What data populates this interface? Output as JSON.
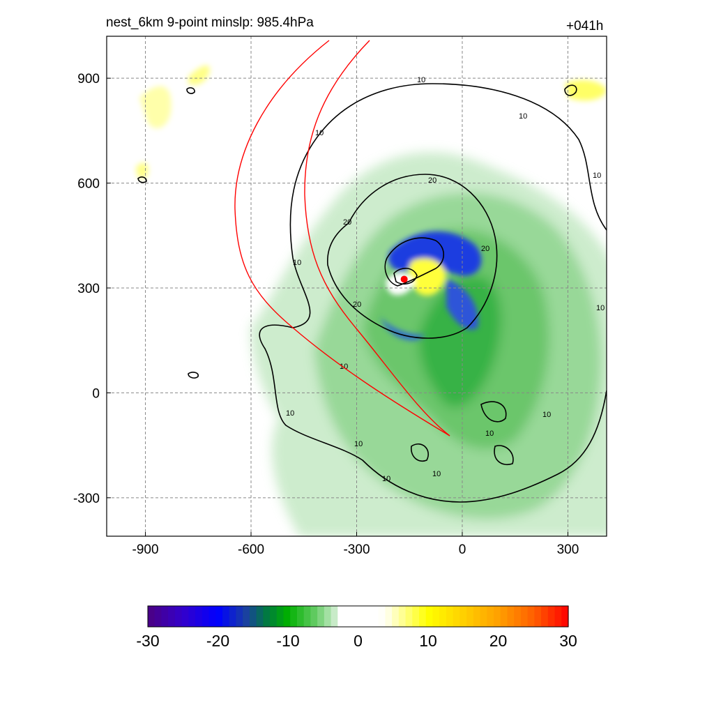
{
  "header": {
    "left_title": "nest_6km  9-point minslp: 985.4hPa",
    "right_title": "+041h"
  },
  "chart_data": {
    "type": "heatmap",
    "title": "nest_6km  9-point minslp: 985.4hPa",
    "time_label": "+041h",
    "xlabel": "",
    "ylabel": "",
    "xlim": [
      -1010,
      410
    ],
    "ylim": [
      -410,
      1020
    ],
    "xticks": [
      -900,
      -600,
      -300,
      0,
      300
    ],
    "yticks": [
      -300,
      0,
      300,
      600,
      900
    ],
    "grid": true,
    "colorbar": {
      "min": -30,
      "max": 30,
      "ticks": [
        -30,
        -20,
        -10,
        0,
        10,
        20,
        30
      ],
      "levels": 62,
      "colors": {
        "min_color": "#4b0082",
        "blue": "#0000ff",
        "green": "#00b000",
        "white": "#ffffff",
        "yellow": "#ffff00",
        "red": "#ff0000"
      }
    },
    "contour_levels": [
      "10",
      "20"
    ],
    "storm_center": {
      "x": -165,
      "y": 325,
      "color": "#ff0000"
    },
    "track_lines": {
      "color": "#ff0000",
      "count": 2
    }
  }
}
